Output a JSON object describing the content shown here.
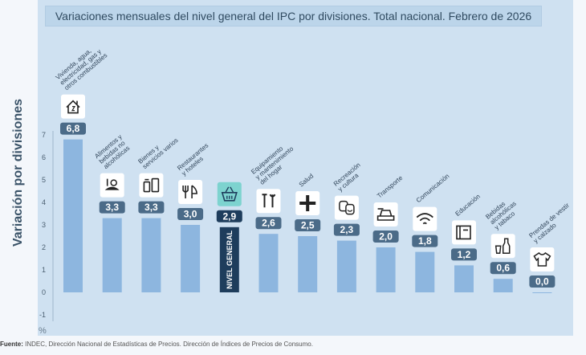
{
  "colors": {
    "bar": "#8db6df",
    "highlight_bar": "#1e3d5c",
    "label_bg": "#4b6b88",
    "highlight_label_bg": "#1e3d5c",
    "icon_bg": "#ffffff",
    "highlight_icon_bg": "#7dd3cf"
  },
  "chart_data": {
    "type": "bar",
    "title": "Variaciones mensuales del nivel general del IPC por divisiones. Total nacional. Febrero de 2026",
    "ylabel": "Variación por divisiones",
    "yunit": "%",
    "ylim": [
      -1,
      7
    ],
    "yticks": [
      -1,
      0,
      1,
      2,
      3,
      4,
      5,
      6,
      7
    ],
    "grid": false,
    "categories": [
      "Vivienda, agua, electricidad, gas y otros combustibles",
      "Alimentos y bebidas no alcohólicas",
      "Bienes y servicios varios",
      "Restaurantes y hoteles",
      "NIVEL GENERAL",
      "Equipamiento y mantenimiento del hogar",
      "Salud",
      "Recreación y cultura",
      "Transporte",
      "Comunicación",
      "Educación",
      "Bebidas alcohólicas y tabaco",
      "Prendas de vestir y calzado"
    ],
    "values": [
      6.8,
      3.3,
      3.3,
      3.0,
      2.9,
      2.6,
      2.5,
      2.3,
      2.0,
      1.8,
      1.2,
      0.6,
      0.0
    ],
    "value_labels": [
      "6,8",
      "3,3",
      "3,3",
      "3,0",
      "2,9",
      "2,6",
      "2,5",
      "2,3",
      "2,0",
      "1,8",
      "1,2",
      "0,6",
      "0,0"
    ],
    "category_label_lines": [
      [
        "Vivienda, agua,",
        "electricidad, gas y",
        "otros combustibles"
      ],
      [
        "Alimentos y",
        "bebidas no",
        "alcohólicas"
      ],
      [
        "Bienes y",
        "servicios varios"
      ],
      [
        "Restaurantes",
        "y hoteles"
      ],
      [],
      [
        "Equipamiento",
        "y mantenimiento",
        "del hogar"
      ],
      [
        "Salud"
      ],
      [
        "Recreación",
        "y cultura"
      ],
      [
        "Transporte"
      ],
      [
        "Comunicación"
      ],
      [
        "Educación"
      ],
      [
        "Bebidas",
        "alcohólicas",
        "y tabaco"
      ],
      [
        "Prendas de vestir",
        "y calzado"
      ]
    ],
    "icons": [
      "house-icon",
      "food-icon",
      "bottles-icon",
      "fork-knife-icon",
      "basket-icon",
      "tools-icon",
      "plus-cross-icon",
      "theater-masks-icon",
      "car-icon",
      "wifi-icon",
      "book-icon",
      "bottle-glass-icon",
      "tshirt-icon"
    ],
    "highlight_index": 4,
    "highlight_bar_text": "NIVEL GENERAL"
  },
  "footer": {
    "source_label": "Fuente:",
    "source_text": "INDEC, Dirección Nacional de Estadísticas de Precios. Dirección de Índices de Precios de Consumo."
  }
}
